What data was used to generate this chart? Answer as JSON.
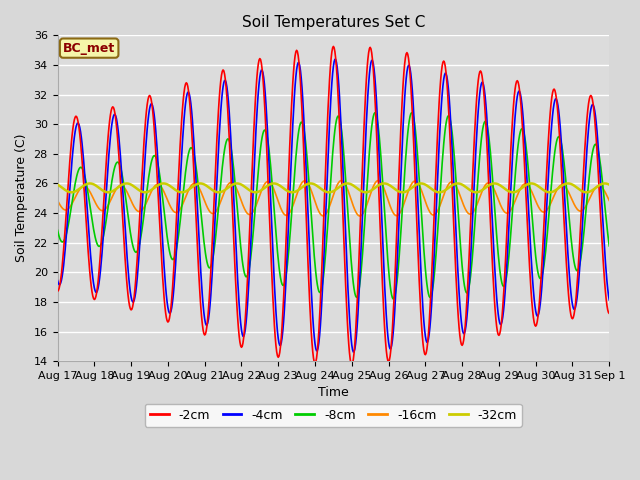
{
  "title": "Soil Temperatures Set C",
  "xlabel": "Time",
  "ylabel": "Soil Temperature (C)",
  "annotation": "BC_met",
  "ylim": [
    14,
    36
  ],
  "ytick_labels": [
    14,
    16,
    18,
    20,
    22,
    24,
    26,
    28,
    30,
    32,
    34,
    36
  ],
  "xtick_labels": [
    "Aug 17",
    "Aug 18",
    "Aug 19",
    "Aug 20",
    "Aug 21",
    "Aug 22",
    "Aug 23",
    "Aug 24",
    "Aug 25",
    "Aug 26",
    "Aug 27",
    "Aug 28",
    "Aug 29",
    "Aug 30",
    "Aug 31",
    "Sep 1"
  ],
  "series": {
    "-2cm": {
      "color": "#ff0000",
      "linewidth": 1.2
    },
    "-4cm": {
      "color": "#0000ff",
      "linewidth": 1.2
    },
    "-8cm": {
      "color": "#00cc00",
      "linewidth": 1.2
    },
    "-16cm": {
      "color": "#ff8800",
      "linewidth": 1.2
    },
    "-32cm": {
      "color": "#cccc00",
      "linewidth": 1.8
    }
  },
  "fig_bg": "#d8d8d8",
  "plot_bg": "#dcdcdc",
  "grid_color": "#ffffff",
  "title_fontsize": 11,
  "label_fontsize": 9,
  "tick_fontsize": 8
}
